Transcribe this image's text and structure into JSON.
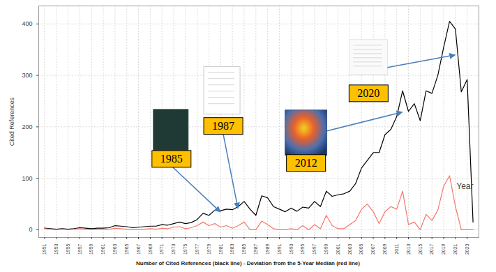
{
  "chart_data": {
    "type": "line",
    "y_label": "Cited References",
    "x_label": "Year",
    "caption": "Number of Cited References (black line) - Deviation from the 5-Year Median (red line)",
    "x": [
      1951,
      1952,
      1953,
      1954,
      1955,
      1956,
      1957,
      1958,
      1959,
      1960,
      1961,
      1962,
      1963,
      1964,
      1965,
      1966,
      1967,
      1968,
      1969,
      1970,
      1971,
      1972,
      1973,
      1974,
      1975,
      1976,
      1977,
      1978,
      1979,
      1980,
      1981,
      1982,
      1983,
      1984,
      1985,
      1986,
      1987,
      1988,
      1989,
      1990,
      1991,
      1992,
      1993,
      1994,
      1995,
      1996,
      1997,
      1998,
      1999,
      2000,
      2001,
      2002,
      2003,
      2004,
      2005,
      2006,
      2007,
      2008,
      2009,
      2010,
      2011,
      2012,
      2013,
      2014,
      2015,
      2016,
      2017,
      2018,
      2019,
      2020,
      2021,
      2022,
      2023,
      2024
    ],
    "series": [
      {
        "color": "#000000",
        "values": [
          3,
          2,
          1,
          2,
          1,
          2,
          4,
          3,
          2,
          3,
          3,
          4,
          8,
          7,
          6,
          4,
          5,
          6,
          7,
          7,
          10,
          9,
          12,
          15,
          12,
          14,
          20,
          32,
          28,
          38,
          37,
          40,
          39,
          45,
          55,
          40,
          28,
          66,
          62,
          45,
          40,
          35,
          42,
          36,
          44,
          42,
          55,
          45,
          75,
          65,
          68,
          70,
          75,
          90,
          120,
          135,
          150,
          150,
          185,
          195,
          220,
          270,
          230,
          245,
          212,
          270,
          265,
          300,
          355,
          405,
          390,
          268,
          292,
          15
        ]
      },
      {
        "color": "#f4786b",
        "values": [
          2,
          1,
          0,
          1,
          0,
          1,
          2,
          1,
          0,
          1,
          1,
          1,
          3,
          2,
          1,
          0,
          1,
          1,
          2,
          1,
          3,
          2,
          5,
          6,
          2,
          4,
          8,
          15,
          8,
          12,
          5,
          8,
          3,
          8,
          15,
          0,
          0,
          17,
          10,
          2,
          0,
          0,
          2,
          0,
          8,
          0,
          10,
          2,
          28,
          8,
          2,
          2,
          10,
          18,
          40,
          50,
          35,
          12,
          35,
          45,
          40,
          75,
          10,
          15,
          0,
          30,
          18,
          38,
          85,
          105,
          45,
          0,
          0,
          0
        ]
      }
    ],
    "xlim": [
      1950,
      2025
    ],
    "xticks": [
      1951,
      1953,
      1955,
      1957,
      1959,
      1961,
      1963,
      1965,
      1967,
      1969,
      1971,
      1973,
      1975,
      1977,
      1979,
      1981,
      1983,
      1985,
      1987,
      1989,
      1991,
      1993,
      1995,
      1997,
      1999,
      2001,
      2003,
      2005,
      2007,
      2009,
      2011,
      2013,
      2015,
      2017,
      2019,
      2021,
      2023
    ],
    "ylim": [
      -15,
      435
    ],
    "yticks": [
      0,
      100,
      200,
      300,
      400
    ],
    "grid": true,
    "annotations": [
      {
        "text": "1985",
        "x": 1981,
        "y": 34
      },
      {
        "text": "1987",
        "x": 1984,
        "y": 41
      },
      {
        "text": "2012",
        "x": 2012,
        "y": 228
      },
      {
        "text": "2020",
        "x": 2021,
        "y": 339
      }
    ]
  }
}
